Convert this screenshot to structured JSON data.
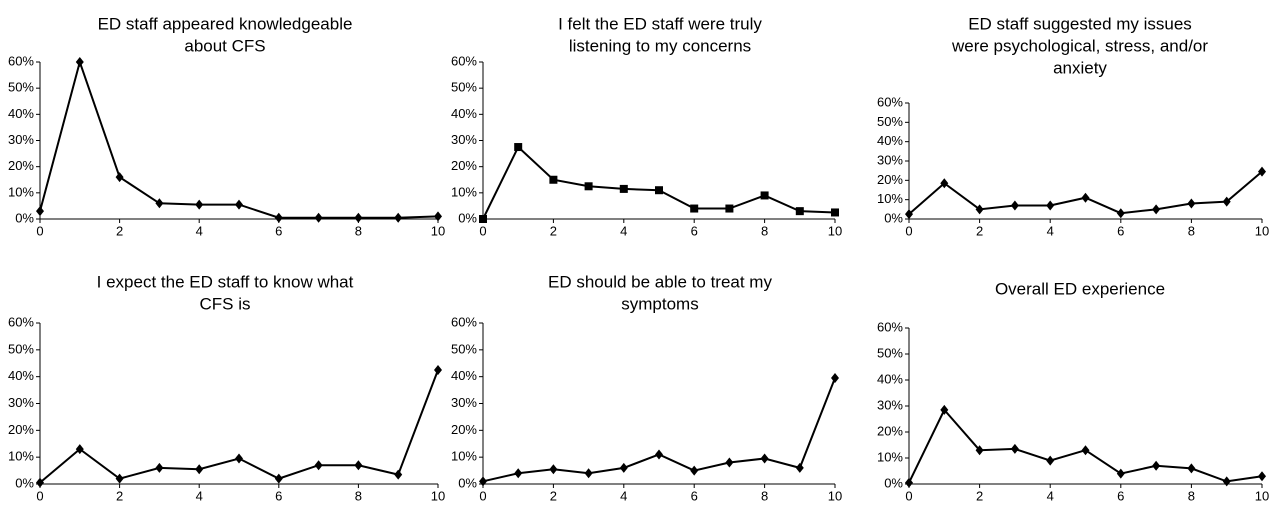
{
  "chart_data": [
    {
      "type": "line",
      "title": [
        "ED staff appeared knowledgeable",
        "about CFS"
      ],
      "marker": "diamond",
      "color": "#000000",
      "x": [
        0,
        1,
        2,
        3,
        4,
        5,
        6,
        7,
        8,
        9,
        10
      ],
      "values": [
        3,
        60,
        16,
        6,
        5.5,
        5.5,
        0.5,
        0.5,
        0.5,
        0.5,
        1
      ],
      "xlim": [
        0,
        10
      ],
      "xticks": [
        0,
        2,
        4,
        6,
        8,
        10
      ],
      "ylim": [
        0,
        60
      ],
      "yticks": [
        {
          "value": 0,
          "label": "0%"
        },
        {
          "value": 10,
          "label": "10%"
        },
        {
          "value": 20,
          "label": "20%"
        },
        {
          "value": 30,
          "label": "30%"
        },
        {
          "value": 40,
          "label": "40%"
        },
        {
          "value": 50,
          "label": "50%"
        },
        {
          "value": 60,
          "label": "60%"
        }
      ]
    },
    {
      "type": "line",
      "title": [
        "I felt the ED staff were truly",
        "listening to my concerns"
      ],
      "marker": "square",
      "color": "#000000",
      "x": [
        0,
        1,
        2,
        3,
        4,
        5,
        6,
        7,
        8,
        9,
        10
      ],
      "values": [
        0,
        27.5,
        15,
        12.5,
        11.5,
        11,
        4,
        4,
        9,
        3,
        2.5
      ],
      "xlim": [
        0,
        10
      ],
      "xticks": [
        0,
        2,
        4,
        6,
        8,
        10
      ],
      "ylim": [
        0,
        60
      ],
      "yticks": [
        {
          "value": 0,
          "label": "0%"
        },
        {
          "value": 10,
          "label": "10%"
        },
        {
          "value": 20,
          "label": "20%"
        },
        {
          "value": 30,
          "label": "30%"
        },
        {
          "value": 40,
          "label": "40%"
        },
        {
          "value": 50,
          "label": "50%"
        },
        {
          "value": 60,
          "label": "60%"
        }
      ]
    },
    {
      "type": "line",
      "title": [
        "ED staff suggested my issues",
        "were psychological, stress, and/or",
        "anxiety"
      ],
      "marker": "diamond",
      "color": "#000000",
      "x": [
        0,
        1,
        2,
        3,
        4,
        5,
        6,
        7,
        8,
        9,
        10
      ],
      "values": [
        2.5,
        18.5,
        5,
        7,
        7,
        11,
        3,
        5,
        8,
        9,
        24.5
      ],
      "xlim": [
        0,
        10
      ],
      "xticks": [
        0,
        2,
        4,
        6,
        8,
        10
      ],
      "ylim": [
        0,
        60
      ],
      "yticks": [
        {
          "value": 0,
          "label": "0%"
        },
        {
          "value": 10,
          "label": "10%"
        },
        {
          "value": 20,
          "label": "20%"
        },
        {
          "value": 30,
          "label": "30%"
        },
        {
          "value": 40,
          "label": "40%"
        },
        {
          "value": 50,
          "label": "50%"
        },
        {
          "value": 60,
          "label": "60%"
        }
      ]
    },
    {
      "type": "line",
      "title": [
        "I expect the ED staff to know what",
        "CFS is"
      ],
      "marker": "diamond",
      "color": "#000000",
      "x": [
        0,
        1,
        2,
        3,
        4,
        5,
        6,
        7,
        8,
        9,
        10
      ],
      "values": [
        0.5,
        13,
        2,
        6,
        5.5,
        9.5,
        2,
        7,
        7,
        3.5,
        42.5
      ],
      "xlim": [
        0,
        10
      ],
      "xticks": [
        0,
        2,
        4,
        6,
        8,
        10
      ],
      "ylim": [
        0,
        60
      ],
      "yticks": [
        {
          "value": 0,
          "label": "0%"
        },
        {
          "value": 10,
          "label": "10%"
        },
        {
          "value": 20,
          "label": "20%"
        },
        {
          "value": 30,
          "label": "30%"
        },
        {
          "value": 40,
          "label": "40%"
        },
        {
          "value": 50,
          "label": "50%"
        },
        {
          "value": 60,
          "label": "60%"
        }
      ]
    },
    {
      "type": "line",
      "title": [
        "ED should be able to treat my",
        "symptoms"
      ],
      "marker": "diamond",
      "color": "#000000",
      "x": [
        0,
        1,
        2,
        3,
        4,
        5,
        6,
        7,
        8,
        9,
        10
      ],
      "values": [
        1,
        4,
        5.5,
        4,
        6,
        11,
        5,
        8,
        9.5,
        6,
        39.5
      ],
      "xlim": [
        0,
        10
      ],
      "xticks": [
        0,
        2,
        4,
        6,
        8,
        10
      ],
      "ylim": [
        0,
        60
      ],
      "yticks": [
        {
          "value": 0,
          "label": "0%"
        },
        {
          "value": 10,
          "label": "10%"
        },
        {
          "value": 20,
          "label": "20%"
        },
        {
          "value": 30,
          "label": "30%"
        },
        {
          "value": 40,
          "label": "40%"
        },
        {
          "value": 50,
          "label": "50%"
        },
        {
          "value": 60,
          "label": "60%"
        }
      ]
    },
    {
      "type": "line",
      "title": [
        "Overall ED experience"
      ],
      "marker": "diamond",
      "color": "#000000",
      "x": [
        0,
        1,
        2,
        3,
        4,
        5,
        6,
        7,
        8,
        9,
        10
      ],
      "values": [
        0.5,
        28.5,
        13,
        13.5,
        9,
        13,
        4,
        7,
        6,
        1,
        3
      ],
      "xlim": [
        0,
        10
      ],
      "xticks": [
        0,
        2,
        4,
        6,
        8,
        10
      ],
      "ylim": [
        0,
        60
      ],
      "yticks": [
        {
          "value": 0,
          "label": "0%"
        },
        {
          "value": 10,
          "label": "10%"
        },
        {
          "value": 20,
          "label": "20%"
        },
        {
          "value": 30,
          "label": "30%"
        },
        {
          "value": 40,
          "label": "40%"
        },
        {
          "value": 50,
          "label": "50%"
        },
        {
          "value": 60,
          "label": "60%"
        }
      ]
    }
  ]
}
